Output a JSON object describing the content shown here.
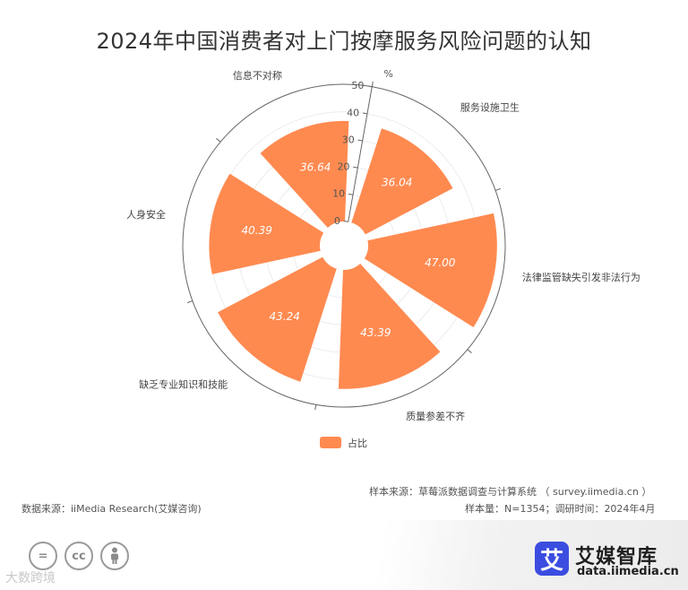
{
  "title": "2024年中国消费者对上门按摩服务风险问题的认知",
  "chart_data": {
    "type": "polar-bar",
    "title": "2024年中国消费者对上门按摩服务风险问题的认知",
    "unit": "%",
    "categories": [
      "服务设施卫生",
      "法律监管缺失引发非法行为",
      "质量参差不齐",
      "缺乏专业知识和技能",
      "人身安全",
      "信息不对称"
    ],
    "series": [
      {
        "name": "占比",
        "values": [
          36.04,
          47.0,
          43.39,
          43.24,
          40.39,
          36.64
        ],
        "color": "#ff8a50"
      }
    ],
    "radial_ticks": [
      "0",
      "10",
      "20",
      "30",
      "40",
      "50"
    ],
    "rmax": 50,
    "legend_position": "bottom-center",
    "grid": true
  },
  "source": {
    "sample_source": "样本来源：草莓派数据调查与计算系统 （ survey.iimedia.cn ）",
    "sample_info": "样本量：N=1354；调研时间：2024年4月",
    "data_source": "数据来源：iiMedia Research(艾媒咨询)"
  },
  "license_icons": [
    "=",
    "cc",
    "person-icon"
  ],
  "watermark": "大数跨境",
  "brand": {
    "logo_char": "艾",
    "name": "艾媒智库",
    "url": "data.iimedia.cn",
    "color": "#3b4de0"
  }
}
